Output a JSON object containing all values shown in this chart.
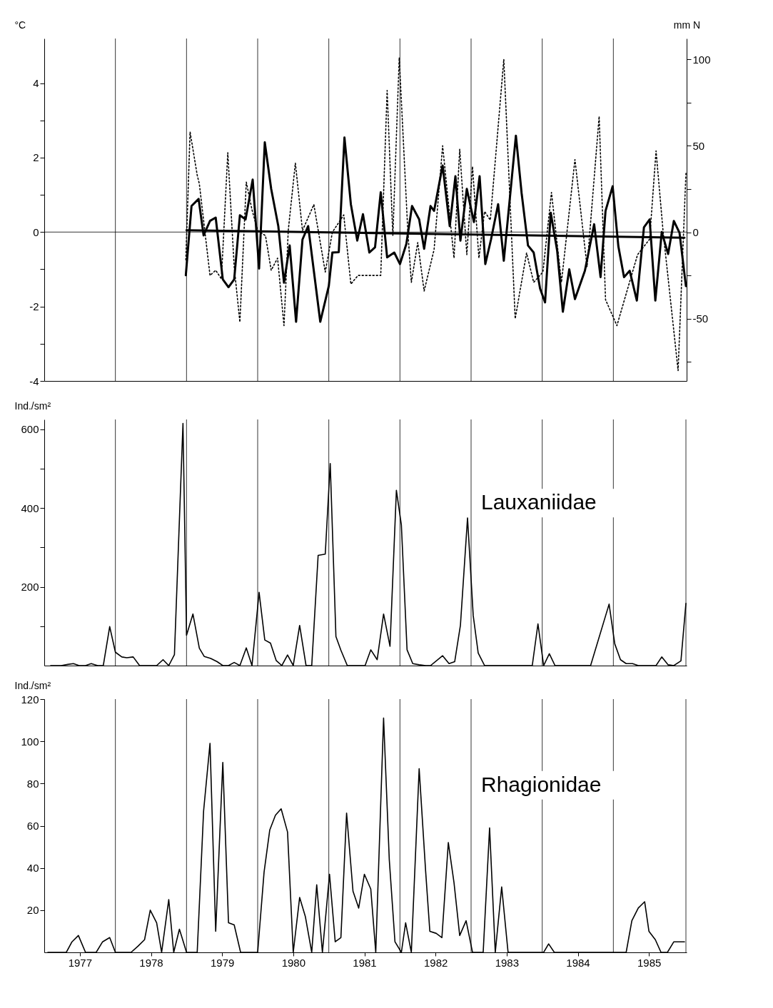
{
  "chart_data": [
    {
      "type": "line",
      "ylabel": "°C",
      "y2label": "mm N",
      "xlim": [
        1977,
        1986.03
      ],
      "ylim": [
        -4,
        5.2
      ],
      "yticks": [
        -4,
        {
          "value": -3,
          "label": null
        },
        -2,
        {
          "value": -1,
          "label": null
        },
        0,
        {
          "value": 1,
          "label": null
        },
        2,
        {
          "value": 3,
          "label": null
        },
        4
      ],
      "y2lim": [
        -86,
        112
      ],
      "y2ticks": [
        {
          "value": -75,
          "label": null
        },
        -50,
        {
          "value": -25,
          "label": null
        },
        0,
        {
          "value": 25,
          "label": null
        },
        50,
        {
          "value": 75,
          "label": null
        },
        100
      ],
      "tick_labels": "y",
      "ref_lines": [
        {
          "axis": "y",
          "value": 0,
          "color": "#000000"
        },
        {
          "axis": "x",
          "value": 1978,
          "color": "#000000"
        },
        {
          "axis": "x",
          "value": 1979,
          "color": "#000000"
        },
        {
          "axis": "x",
          "value": 1980,
          "color": "#000000"
        },
        {
          "axis": "x",
          "value": 1981,
          "color": "#000000"
        },
        {
          "axis": "x",
          "value": 1982,
          "color": "#000000"
        },
        {
          "axis": "x",
          "value": 1983,
          "color": "#000000"
        },
        {
          "axis": "x",
          "value": 1984,
          "color": "#000000"
        },
        {
          "axis": "x",
          "value": 1985,
          "color": "#000000"
        }
      ],
      "series": [
        {
          "color": "#000000",
          "line_style": "solid",
          "x": [
            1978.99,
            1979.07,
            1979.17,
            1979.24,
            1979.33,
            1979.41,
            1979.51,
            1979.59,
            1979.67,
            1979.75,
            1979.83,
            1979.93,
            1980.02,
            1980.1,
            1980.19,
            1980.29,
            1980.37,
            1980.45,
            1980.54,
            1980.63,
            1980.71,
            1980.88,
            1981.0,
            1981.05,
            1981.14,
            1981.22,
            1981.31,
            1981.4,
            1981.48,
            1981.57,
            1981.65,
            1981.73,
            1981.82,
            1981.92,
            1982.0,
            1982.09,
            1982.17,
            1982.27,
            1982.34,
            1982.43,
            1982.48,
            1982.6,
            1982.7,
            1982.78,
            1982.85,
            1982.94,
            1983.04,
            1983.12,
            1983.2,
            1983.28,
            1983.38,
            1983.46,
            1983.63,
            1983.71,
            1983.8,
            1983.88,
            1983.97,
            1984.04,
            1984.12,
            1984.21,
            1984.29,
            1984.38,
            1984.46,
            1984.6,
            1984.73,
            1984.82,
            1984.89,
            1984.99,
            1985.07,
            1985.15,
            1985.23,
            1985.33,
            1985.43,
            1985.51,
            1985.59,
            1985.68,
            1985.77,
            1985.85,
            1985.93,
            1986.02
          ],
          "values": [
            -1.16,
            0.7,
            0.89,
            -0.09,
            0.3,
            0.39,
            -1.27,
            -1.48,
            -1.27,
            0.45,
            0.34,
            1.41,
            -0.98,
            2.41,
            1.16,
            0.16,
            -1.36,
            -0.36,
            -2.41,
            -0.2,
            0.16,
            -2.41,
            -1.45,
            -0.55,
            -0.54,
            2.54,
            0.75,
            -0.23,
            0.48,
            -0.55,
            -0.41,
            1.07,
            -0.68,
            -0.55,
            -0.86,
            -0.32,
            0.7,
            0.34,
            -0.45,
            0.7,
            0.57,
            1.79,
            0.16,
            1.5,
            -0.23,
            1.16,
            0.27,
            1.5,
            -0.86,
            -0.2,
            0.75,
            -0.77,
            2.59,
            1.05,
            -0.36,
            -0.55,
            -1.52,
            -1.89,
            0.52,
            -0.5,
            -2.14,
            -1.0,
            -1.8,
            -1.04,
            0.21,
            -1.21,
            0.57,
            1.23,
            -0.38,
            -1.21,
            -1.04,
            -1.84,
            0.13,
            0.34,
            -1.84,
            0.0,
            -0.59,
            0.3,
            -0.02,
            -1.45
          ]
        },
        {
          "color": "#000000",
          "line_style": "dotted",
          "axis": "y2",
          "x": [
            1978.99,
            1979.05,
            1979.15,
            1979.18,
            1979.33,
            1979.41,
            1979.49,
            1979.58,
            1979.67,
            1979.75,
            1979.84,
            1979.92,
            1980.0,
            1980.11,
            1980.19,
            1980.28,
            1980.37,
            1980.43,
            1980.53,
            1980.63,
            1980.79,
            1980.95,
            1981.05,
            1981.21,
            1981.31,
            1981.41,
            1981.73,
            1981.82,
            1981.9,
            1981.99,
            1982.11,
            1982.16,
            1982.25,
            1982.34,
            1982.48,
            1982.6,
            1982.76,
            1982.84,
            1982.94,
            1983.02,
            1983.11,
            1983.19,
            1983.27,
            1983.46,
            1983.62,
            1983.78,
            1983.88,
            1984.01,
            1984.13,
            1984.27,
            1984.46,
            1984.63,
            1984.8,
            1984.89,
            1985.05,
            1985.34,
            1985.51,
            1985.6,
            1985.7,
            1985.91,
            1986.02
          ],
          "values": [
            -16,
            58,
            33,
            28,
            -25,
            -22,
            -27,
            46,
            -20,
            -52,
            29,
            13,
            1,
            -2,
            -22,
            -15,
            -54,
            1,
            40,
            1,
            16,
            -23,
            0,
            10,
            -30,
            -25,
            -25,
            82,
            -2,
            101,
            1,
            -29,
            -6,
            -34,
            -10,
            50,
            -15,
            48,
            -13,
            38,
            -15,
            12,
            7,
            100,
            -50,
            -12,
            -29,
            -23,
            23,
            -29,
            42,
            -20,
            67,
            -39,
            -54,
            -13,
            -4,
            47,
            0,
            -80,
            34
          ]
        },
        {
          "color": "#000000",
          "line_style": "solid",
          "x": [
            1979.0,
            1986.0
          ],
          "values": [
            0.05,
            -0.15
          ]
        }
      ]
    },
    {
      "type": "line",
      "ylabel": "Ind./sm²",
      "annotations": [
        "Lauxaniidae"
      ],
      "xlim": [
        1977,
        1986.03
      ],
      "ylim": [
        0,
        625
      ],
      "yticks": [
        {
          "value": 100,
          "label": null
        },
        200,
        {
          "value": 300,
          "label": null
        },
        400,
        {
          "value": 500,
          "label": null
        },
        600
      ],
      "tick_labels": "y",
      "ref_lines": [
        {
          "axis": "x",
          "value": 1978,
          "color": "#000000"
        },
        {
          "axis": "x",
          "value": 1979,
          "color": "#000000"
        },
        {
          "axis": "x",
          "value": 1980,
          "color": "#000000"
        },
        {
          "axis": "x",
          "value": 1981,
          "color": "#000000"
        },
        {
          "axis": "x",
          "value": 1982,
          "color": "#000000"
        },
        {
          "axis": "x",
          "value": 1983,
          "color": "#000000"
        },
        {
          "axis": "x",
          "value": 1984,
          "color": "#000000"
        },
        {
          "axis": "x",
          "value": 1985,
          "color": "#000000"
        },
        {
          "axis": "x",
          "value": 1986.02,
          "color": "#000000"
        }
      ],
      "series": [
        {
          "color": "#000000",
          "line_style": "solid",
          "x": [
            1977.09,
            1977.24,
            1977.33,
            1977.41,
            1977.49,
            1977.58,
            1977.66,
            1977.75,
            1977.83,
            1977.92,
            1978.0,
            1978.09,
            1978.16,
            1978.25,
            1978.34,
            1978.58,
            1978.67,
            1978.75,
            1978.83,
            1978.95,
            1979.0,
            1979.09,
            1979.18,
            1979.25,
            1979.34,
            1979.43,
            1979.51,
            1979.59,
            1979.67,
            1979.75,
            1979.84,
            1979.92,
            1980.02,
            1980.1,
            1980.18,
            1980.26,
            1980.34,
            1980.42,
            1980.5,
            1980.59,
            1980.68,
            1980.76,
            1980.85,
            1980.95,
            1981.02,
            1981.1,
            1981.17,
            1981.26,
            1981.36,
            1981.51,
            1981.59,
            1981.68,
            1981.77,
            1981.86,
            1981.95,
            1982.02,
            1982.1,
            1982.18,
            1982.27,
            1982.36,
            1982.43,
            1982.6,
            1982.69,
            1982.77,
            1982.85,
            1982.95,
            1983.03,
            1983.1,
            1983.19,
            1983.26,
            1983.35,
            1983.44,
            1983.53,
            1983.68,
            1983.78,
            1983.86,
            1983.94,
            1984.02,
            1984.1,
            1984.18,
            1984.27,
            1984.36,
            1984.68,
            1984.94,
            1985.02,
            1985.1,
            1985.18,
            1985.27,
            1985.35,
            1985.44,
            1985.52,
            1985.6,
            1985.68,
            1985.77,
            1985.85,
            1985.95,
            1986.02
          ],
          "values": [
            0,
            0,
            3,
            5,
            0,
            0,
            5,
            0,
            0,
            99,
            34,
            22,
            20,
            22,
            0,
            0,
            15,
            0,
            28,
            615,
            77,
            131,
            44,
            23,
            18,
            10,
            0,
            0,
            8,
            0,
            45,
            0,
            186,
            65,
            57,
            13,
            0,
            27,
            0,
            102,
            0,
            0,
            280,
            283,
            513,
            74,
            39,
            0,
            0,
            0,
            40,
            15,
            131,
            49,
            445,
            357,
            40,
            5,
            2,
            0,
            0,
            25,
            5,
            10,
            102,
            375,
            127,
            32,
            0,
            0,
            0,
            0,
            0,
            0,
            0,
            0,
            106,
            0,
            30,
            0,
            0,
            0,
            0,
            156,
            55,
            15,
            5,
            5,
            0,
            0,
            0,
            0,
            22,
            2,
            0,
            12,
            158
          ]
        }
      ]
    },
    {
      "type": "line",
      "ylabel": "Ind./sm²",
      "annotations": [
        "Rhagionidae"
      ],
      "xlim": [
        1977,
        1986.03
      ],
      "ylim": [
        0,
        120
      ],
      "yticks": [
        20,
        40,
        60,
        80,
        100,
        120
      ],
      "xticks": [
        {
          "value": 1977.5,
          "label": "1977"
        },
        {
          "value": 1978.5,
          "label": "1978"
        },
        {
          "value": 1979.5,
          "label": "1979"
        },
        {
          "value": 1980.5,
          "label": "1980"
        },
        {
          "value": 1981.5,
          "label": "1981"
        },
        {
          "value": 1982.5,
          "label": "1982"
        },
        {
          "value": 1983.5,
          "label": "1983"
        },
        {
          "value": 1984.5,
          "label": "1984"
        },
        {
          "value": 1985.5,
          "label": "1985"
        }
      ],
      "ref_lines": [
        {
          "axis": "x",
          "value": 1978,
          "color": "#000000"
        },
        {
          "axis": "x",
          "value": 1979,
          "color": "#000000"
        },
        {
          "axis": "x",
          "value": 1980,
          "color": "#000000"
        },
        {
          "axis": "x",
          "value": 1981,
          "color": "#000000"
        },
        {
          "axis": "x",
          "value": 1982,
          "color": "#000000"
        },
        {
          "axis": "x",
          "value": 1983,
          "color": "#000000"
        },
        {
          "axis": "x",
          "value": 1984,
          "color": "#000000"
        },
        {
          "axis": "x",
          "value": 1985,
          "color": "#000000"
        },
        {
          "axis": "x",
          "value": 1986.02,
          "color": "#000000"
        }
      ],
      "series": [
        {
          "color": "#000000",
          "line_style": "solid",
          "x": [
            1977.05,
            1977.31,
            1977.39,
            1977.48,
            1977.58,
            1977.73,
            1977.82,
            1977.92,
            1978.0,
            1978.22,
            1978.32,
            1978.41,
            1978.49,
            1978.58,
            1978.65,
            1978.75,
            1978.82,
            1978.9,
            1979.0,
            1979.15,
            1979.24,
            1979.33,
            1979.41,
            1979.51,
            1979.59,
            1979.67,
            1979.76,
            1980.0,
            1980.09,
            1980.17,
            1980.25,
            1980.33,
            1980.42,
            1980.5,
            1980.59,
            1980.67,
            1980.76,
            1980.83,
            1980.91,
            1981.01,
            1981.09,
            1981.17,
            1981.25,
            1981.34,
            1981.42,
            1981.5,
            1981.59,
            1981.66,
            1981.77,
            1981.85,
            1981.93,
            1982.02,
            1982.08,
            1982.16,
            1982.27,
            1982.36,
            1982.42,
            1982.51,
            1982.59,
            1982.68,
            1982.76,
            1982.84,
            1982.93,
            1983.02,
            1983.17,
            1983.26,
            1983.34,
            1983.43,
            1983.52,
            1984.02,
            1984.09,
            1984.17,
            1985.18,
            1985.26,
            1985.35,
            1985.44,
            1985.5,
            1985.59,
            1985.67,
            1985.76,
            1985.85,
            1986.0
          ],
          "values": [
            0,
            0,
            5,
            8,
            0,
            0,
            5,
            7,
            0,
            0,
            3,
            6,
            20,
            14,
            0,
            25,
            0,
            11,
            0,
            0,
            67,
            99,
            10,
            90,
            14,
            13,
            0,
            0,
            38,
            58,
            65,
            68,
            57,
            0,
            26,
            17,
            0,
            32,
            0,
            37,
            5,
            7,
            66,
            29,
            21,
            37,
            30,
            0,
            111,
            44,
            5,
            0,
            14,
            0,
            87,
            39,
            10,
            9,
            7,
            52,
            33,
            8,
            15,
            0,
            0,
            59,
            0,
            31,
            0,
            0,
            4,
            0,
            0,
            15,
            21,
            24,
            10,
            6,
            0,
            0,
            5,
            5
          ]
        }
      ]
    }
  ]
}
